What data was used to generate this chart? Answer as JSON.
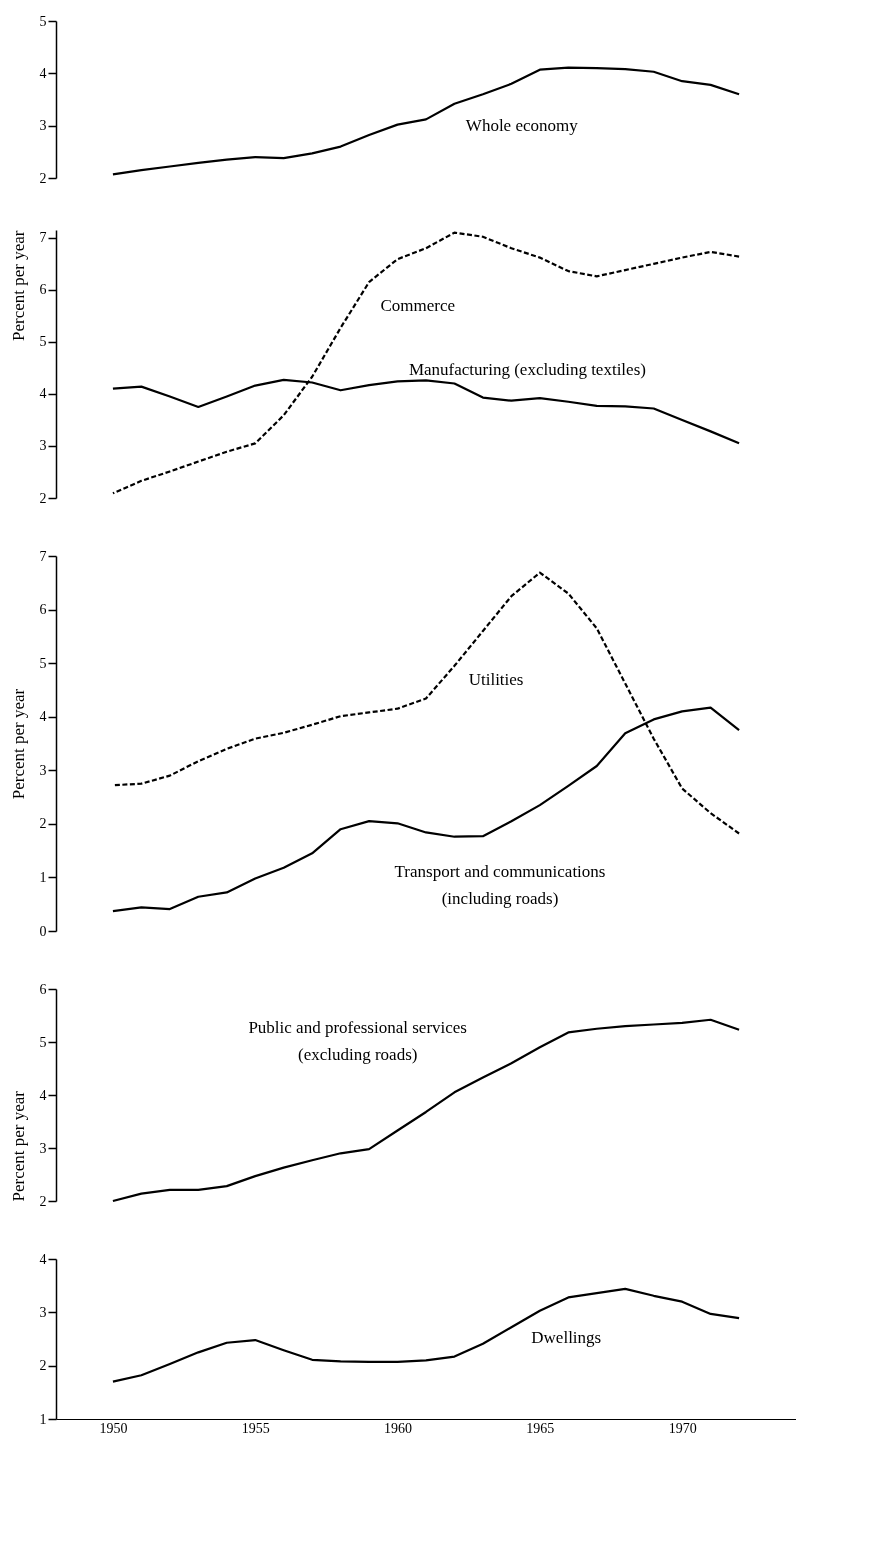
{
  "chart_data": [
    {
      "type": "line",
      "x": [
        1950,
        1951,
        1952,
        1953,
        1954,
        1955,
        1956,
        1957,
        1958,
        1959,
        1960,
        1961,
        1962,
        1963,
        1964,
        1965,
        1966,
        1967,
        1968,
        1969,
        1970,
        1971,
        1972
      ],
      "xlim": [
        1948,
        1974
      ],
      "ylim": [
        2,
        5
      ],
      "yticks": [
        2,
        3,
        4,
        5
      ],
      "tick_labels": "y",
      "grid": false,
      "marker": "none",
      "series": [
        {
          "name": "Whole economy",
          "color": "#000000",
          "line_style": "solid",
          "values": [
            2.07,
            2.15,
            2.22,
            2.29,
            2.35,
            2.4,
            2.38,
            2.47,
            2.6,
            2.82,
            3.02,
            3.12,
            3.42,
            3.6,
            3.8,
            4.07,
            4.11,
            4.1,
            4.08,
            4.03,
            3.85,
            3.78,
            3.6
          ]
        }
      ]
    },
    {
      "type": "line",
      "x": [
        1950,
        1951,
        1952,
        1953,
        1954,
        1955,
        1956,
        1957,
        1958,
        1959,
        1960,
        1961,
        1962,
        1963,
        1964,
        1965,
        1966,
        1967,
        1968,
        1969,
        1970,
        1971,
        1972
      ],
      "xlim": [
        1948,
        1974
      ],
      "ylim": [
        2,
        7.15
      ],
      "yticks": [
        2,
        3,
        4,
        5,
        6,
        7
      ],
      "ylabel": "Percent per year",
      "tick_labels": "y",
      "grid": false,
      "marker": "none",
      "series": [
        {
          "name": "Commerce",
          "color": "#000000",
          "line_style": "dashed",
          "values": [
            2.09,
            2.33,
            2.51,
            2.7,
            2.89,
            3.05,
            3.59,
            4.33,
            5.27,
            6.15,
            6.59,
            6.8,
            7.1,
            7.02,
            6.8,
            6.62,
            6.36,
            6.26,
            6.38,
            6.5,
            6.62,
            6.73,
            6.64
          ]
        },
        {
          "name": "Manufacturing (excluding textiles)",
          "color": "#000000",
          "line_style": "solid",
          "values": [
            4.1,
            4.14,
            3.95,
            3.75,
            3.95,
            4.16,
            4.27,
            4.22,
            4.07,
            4.17,
            4.24,
            4.26,
            4.2,
            3.93,
            3.87,
            3.92,
            3.85,
            3.77,
            3.76,
            3.72,
            3.5,
            3.28,
            3.05
          ]
        }
      ]
    },
    {
      "type": "line",
      "x": [
        1950,
        1951,
        1952,
        1953,
        1954,
        1955,
        1956,
        1957,
        1958,
        1959,
        1960,
        1961,
        1962,
        1963,
        1964,
        1965,
        1966,
        1967,
        1968,
        1969,
        1970,
        1971,
        1972
      ],
      "xlim": [
        1948,
        1974
      ],
      "ylim": [
        0,
        7
      ],
      "yticks": [
        0,
        1,
        2,
        3,
        4,
        5,
        6,
        7
      ],
      "ylabel": "Percent per year",
      "tick_labels": "y",
      "grid": false,
      "marker": "none",
      "series": [
        {
          "name": "Utilities",
          "color": "#000000",
          "line_style": "dashed",
          "values": [
            2.72,
            2.75,
            2.9,
            3.17,
            3.4,
            3.59,
            3.7,
            3.85,
            4.01,
            4.08,
            4.15,
            4.34,
            4.95,
            5.6,
            6.25,
            6.69,
            6.3,
            5.65,
            4.62,
            3.59,
            2.66,
            2.2,
            1.82
          ]
        },
        {
          "name": "Transport and communications\n(including roads)",
          "color": "#000000",
          "line_style": "solid",
          "values": [
            0.37,
            0.44,
            0.41,
            0.64,
            0.72,
            0.98,
            1.18,
            1.45,
            1.9,
            2.05,
            2.01,
            1.84,
            1.76,
            1.77,
            2.05,
            2.35,
            2.71,
            3.08,
            3.69,
            3.95,
            4.1,
            4.17,
            3.75
          ]
        }
      ]
    },
    {
      "type": "line",
      "x": [
        1950,
        1951,
        1952,
        1953,
        1954,
        1955,
        1956,
        1957,
        1958,
        1959,
        1960,
        1961,
        1962,
        1963,
        1964,
        1965,
        1966,
        1967,
        1968,
        1969,
        1970,
        1971,
        1972
      ],
      "xlim": [
        1948,
        1974
      ],
      "ylim": [
        2,
        6
      ],
      "yticks": [
        2,
        3,
        4,
        5,
        6
      ],
      "ylabel": "Percent per year",
      "tick_labels": "y",
      "grid": false,
      "marker": "none",
      "series": [
        {
          "name": "Public and professional services\n(excluding roads)",
          "color": "#000000",
          "line_style": "solid",
          "values": [
            2.0,
            2.14,
            2.21,
            2.21,
            2.28,
            2.47,
            2.63,
            2.77,
            2.9,
            2.98,
            3.33,
            3.68,
            4.05,
            4.33,
            4.6,
            4.9,
            5.18,
            5.25,
            5.3,
            5.33,
            5.36,
            5.42,
            5.23
          ]
        }
      ]
    },
    {
      "type": "line",
      "x": [
        1950,
        1951,
        1952,
        1953,
        1954,
        1955,
        1956,
        1957,
        1958,
        1959,
        1960,
        1961,
        1962,
        1963,
        1964,
        1965,
        1966,
        1967,
        1968,
        1969,
        1970,
        1971,
        1972
      ],
      "xlim": [
        1948,
        1974
      ],
      "xticks": [
        1950,
        1955,
        1960,
        1965,
        1970
      ],
      "ylim": [
        1,
        4
      ],
      "yticks": [
        1,
        2,
        3,
        4
      ],
      "grid": false,
      "marker": "none",
      "series": [
        {
          "name": "Dwellings",
          "color": "#000000",
          "line_style": "solid",
          "values": [
            1.7,
            1.82,
            2.03,
            2.25,
            2.43,
            2.48,
            2.29,
            2.11,
            2.08,
            2.07,
            2.07,
            2.1,
            2.17,
            2.41,
            2.72,
            3.03,
            3.28,
            3.36,
            3.44,
            3.31,
            3.2,
            2.97,
            2.89
          ]
        }
      ]
    }
  ]
}
